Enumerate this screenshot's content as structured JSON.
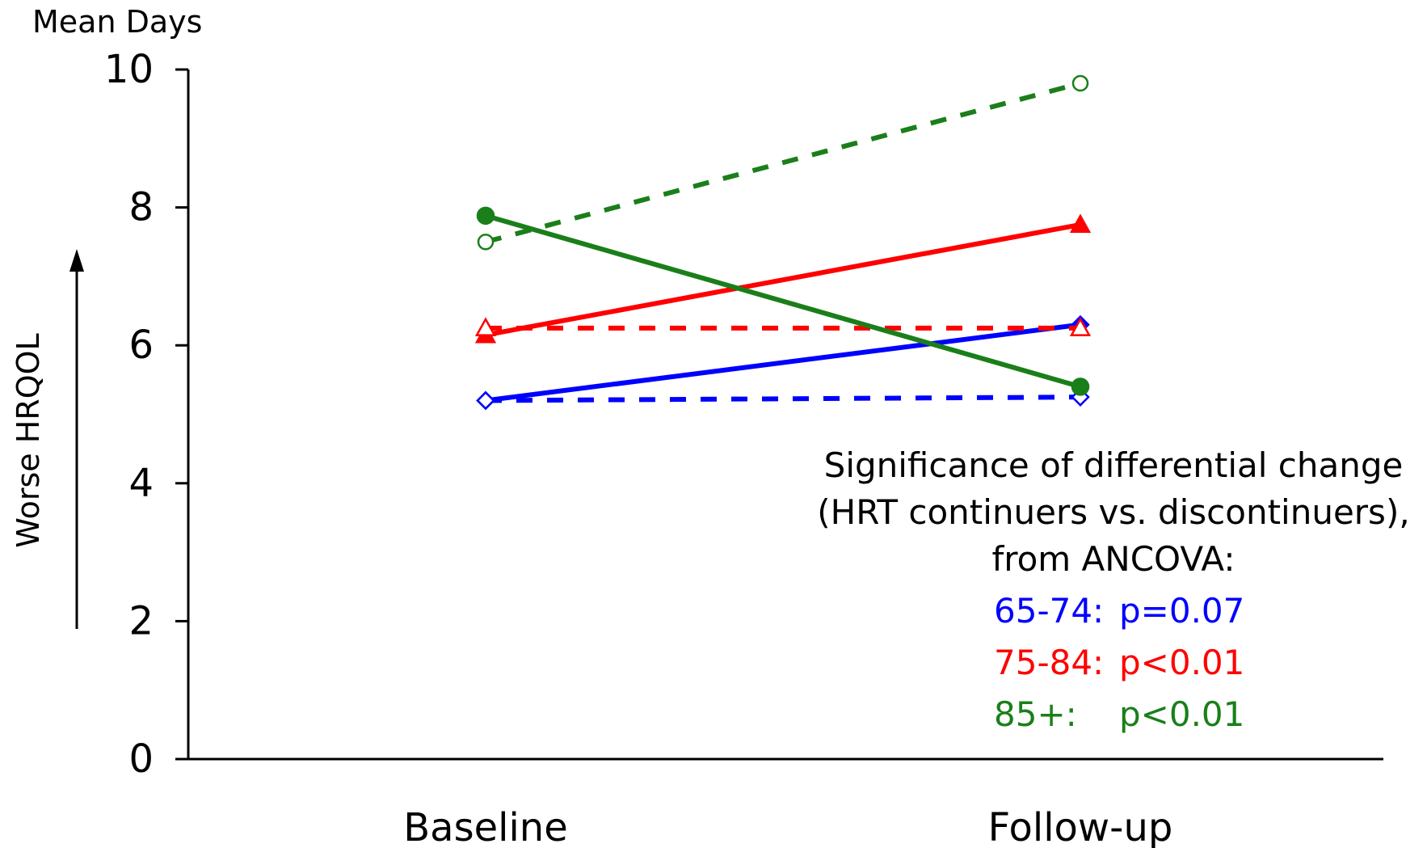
{
  "chart_data": {
    "type": "line",
    "y_title": "Mean Days",
    "y_side_label": "Worse HRQOL",
    "categories": [
      "Baseline",
      "Follow-up"
    ],
    "ylim": [
      0,
      10
    ],
    "yticks": [
      0,
      2,
      4,
      6,
      8,
      10
    ],
    "grid": false,
    "series": [
      {
        "group": "65-74",
        "style": "solid",
        "marker": "diamond",
        "filled": true,
        "color": "#0000ff",
        "values": [
          5.2,
          6.3
        ]
      },
      {
        "group": "65-74",
        "style": "dashed",
        "marker": "diamond",
        "filled": false,
        "color": "#0000ff",
        "values": [
          5.2,
          5.25
        ]
      },
      {
        "group": "75-84",
        "style": "solid",
        "marker": "triangle",
        "filled": true,
        "color": "#ff0000",
        "values": [
          6.15,
          7.75
        ]
      },
      {
        "group": "75-84",
        "style": "dashed",
        "marker": "triangle",
        "filled": false,
        "color": "#ff0000",
        "values": [
          6.25,
          6.25
        ]
      },
      {
        "group": "85+",
        "style": "solid",
        "marker": "circle",
        "filled": true,
        "color": "#1a7f1a",
        "values": [
          7.88,
          5.4
        ]
      },
      {
        "group": "85+",
        "style": "dashed",
        "marker": "circle",
        "filled": false,
        "color": "#1a7f1a",
        "values": [
          7.5,
          9.8
        ]
      }
    ],
    "annotation": {
      "lines": [
        "Significance of differential change",
        "(HRT continuers vs. discontinuers),",
        "from ANCOVA:"
      ],
      "results": [
        {
          "group": "65-74:",
          "p": "p=0.07",
          "color": "#0000ff"
        },
        {
          "group": "75-84:",
          "p": "p<0.01",
          "color": "#ff0000"
        },
        {
          "group": "85+:",
          "p": "p<0.01",
          "color": "#1a7f1a"
        }
      ]
    }
  }
}
